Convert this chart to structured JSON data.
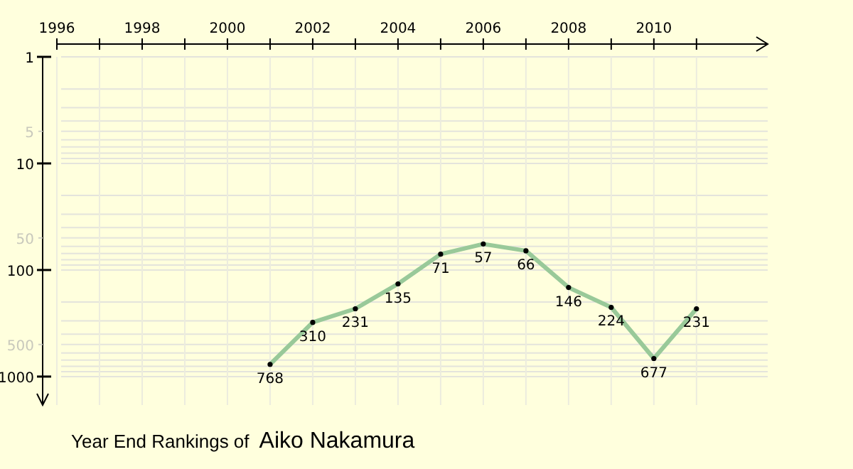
{
  "chart_data": {
    "type": "line",
    "title": "Year End Rankings of",
    "subtitle": "Aiko Nakamura",
    "x": [
      2001,
      2002,
      2003,
      2004,
      2005,
      2006,
      2007,
      2008,
      2009,
      2010,
      2011
    ],
    "series": [
      {
        "color": "#99c999",
        "values": [
          768,
          310,
          231,
          135,
          71,
          57,
          66,
          146,
          224,
          677,
          231
        ]
      }
    ],
    "xlim": [
      1996,
      2012.67
    ],
    "xticks": [
      1996,
      {
        "value": 1997,
        "label": null
      },
      1998,
      {
        "value": 1999,
        "label": null
      },
      2000,
      {
        "value": 2001,
        "label": null
      },
      2002,
      {
        "value": 2003,
        "label": null
      },
      2004,
      {
        "value": 2005,
        "label": null
      },
      2006,
      {
        "value": 2007,
        "label": null
      },
      2008,
      {
        "value": 2009,
        "label": null
      },
      2010,
      {
        "value": 2011,
        "label": null
      }
    ],
    "ylim": [
      1850,
      1
    ],
    "yticks": [
      1,
      {
        "value": 2,
        "label": null
      },
      {
        "value": 3,
        "label": null
      },
      {
        "value": 4,
        "label": null
      },
      5,
      {
        "value": 6,
        "label": null
      },
      {
        "value": 7,
        "label": null
      },
      {
        "value": 8,
        "label": null
      },
      {
        "value": 9,
        "label": null
      },
      10,
      {
        "value": 20,
        "label": null
      },
      {
        "value": 30,
        "label": null
      },
      {
        "value": 40,
        "label": null
      },
      50,
      {
        "value": 60,
        "label": null
      },
      {
        "value": 70,
        "label": null
      },
      {
        "value": 80,
        "label": null
      },
      {
        "value": 90,
        "label": null
      },
      100,
      {
        "value": 200,
        "label": null
      },
      {
        "value": 300,
        "label": null
      },
      {
        "value": 400,
        "label": null
      },
      500,
      {
        "value": 600,
        "label": null
      },
      {
        "value": 700,
        "label": null
      },
      {
        "value": 800,
        "label": null
      },
      {
        "value": 900,
        "label": null
      },
      1000
    ],
    "log": "y",
    "grid": true,
    "marker": "circle",
    "line_style": "solid",
    "data_labels": true
  }
}
